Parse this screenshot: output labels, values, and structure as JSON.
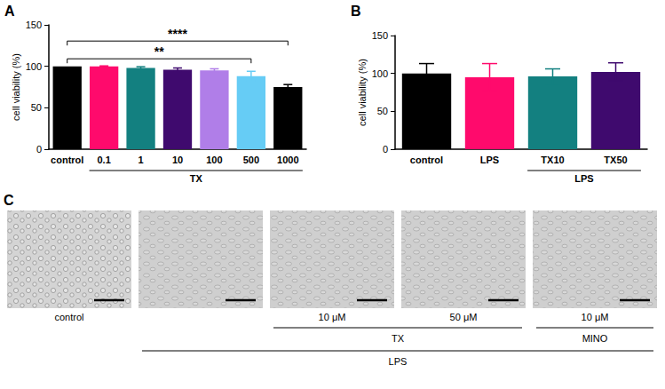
{
  "chart_data": [
    {
      "type": "bar",
      "panel": "A",
      "categories": [
        "control",
        "0.1",
        "1",
        "10",
        "100",
        "500",
        "1000"
      ],
      "values": [
        100,
        100,
        98,
        96,
        95,
        88,
        75
      ],
      "errors": [
        0,
        0.5,
        1.5,
        2,
        2,
        6,
        3
      ],
      "colors": [
        "#000000",
        "#ff0a6c",
        "#138080",
        "#3f0a6e",
        "#b07ee8",
        "#66ccf5",
        "#000000"
      ],
      "ylabel": "cell viability (%)",
      "ylim": [
        0,
        150
      ],
      "yticks": [
        0,
        50,
        100,
        150
      ],
      "grid": false,
      "groups": [
        {
          "label": "TX",
          "from": "0.1",
          "to": "1000"
        }
      ],
      "significance": [
        {
          "label": "**",
          "from": "control",
          "to": "500"
        },
        {
          "label": "****",
          "from": "control",
          "to": "1000"
        }
      ]
    },
    {
      "type": "bar",
      "panel": "B",
      "categories": [
        "control",
        "LPS",
        "TX10",
        "TX50"
      ],
      "values": [
        100,
        95,
        96,
        102
      ],
      "errors": [
        13,
        18,
        10,
        12
      ],
      "colors": [
        "#000000",
        "#ff0a6c",
        "#138080",
        "#3f0a6e"
      ],
      "ylabel": "cell viability (%)",
      "ylim": [
        0,
        150
      ],
      "yticks": [
        0,
        50,
        100,
        150
      ],
      "grid": false,
      "groups": [
        {
          "label": "LPS",
          "from": "TX10",
          "to": "TX50"
        }
      ]
    }
  ],
  "panel_c": {
    "panel": "C",
    "images": [
      "control",
      null,
      "10 μM",
      "50 μM",
      "10 μM"
    ],
    "groups": [
      {
        "label": "TX",
        "from": 2,
        "to": 3
      },
      {
        "label": "MINO",
        "from": 4,
        "to": 4
      },
      {
        "label": "LPS",
        "from": 1,
        "to": 4
      }
    ]
  }
}
